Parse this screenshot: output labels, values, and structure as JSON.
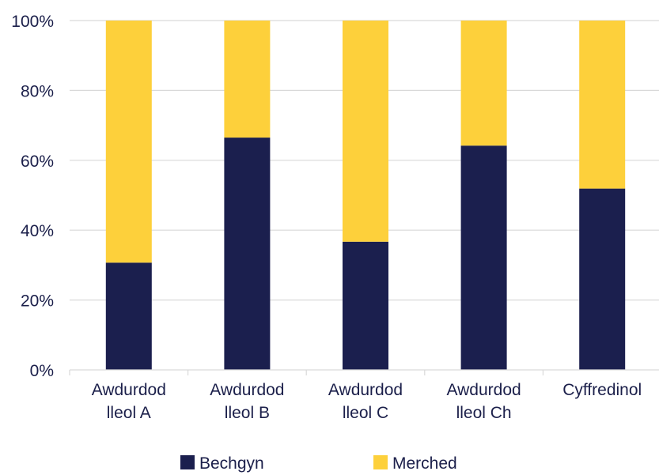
{
  "chart_data": {
    "type": "bar",
    "stacked": true,
    "categories": [
      [
        "Awdurdod",
        "lleol A"
      ],
      [
        "Awdurdod",
        "lleol B"
      ],
      [
        "Awdurdod",
        "lleol C"
      ],
      [
        "Awdurdod",
        "lleol Ch"
      ],
      [
        "Cyffredinol"
      ]
    ],
    "series": [
      {
        "name": "Bechgyn",
        "color": "#1b1f4e",
        "values": [
          30.7,
          66.5,
          36.7,
          64.2,
          51.9
        ]
      },
      {
        "name": "Merched",
        "color": "#fdd03b",
        "values": [
          69.3,
          33.5,
          63.3,
          35.8,
          48.1
        ]
      }
    ],
    "y_ticks": [
      "0%",
      "20%",
      "40%",
      "60%",
      "80%",
      "100%"
    ],
    "ylim": [
      0,
      100
    ],
    "grid": true,
    "legend": "bottom",
    "title": "",
    "xlabel": "",
    "ylabel": ""
  }
}
